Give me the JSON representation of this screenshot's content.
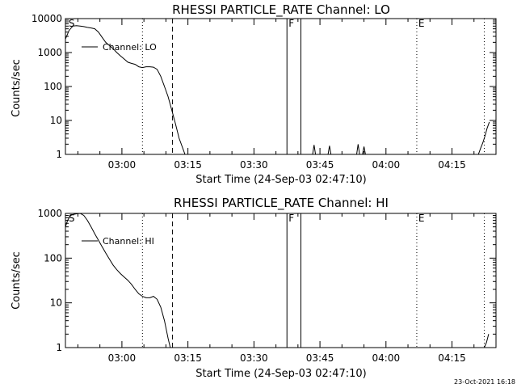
{
  "footer": {
    "timestamp": "23-Oct-2021 16:18"
  },
  "chart_data": [
    {
      "type": "line",
      "title": "RHESSI PARTICLE_RATE Channel: LO",
      "xlabel": "Start Time (24-Sep-03 02:47:10)",
      "ylabel": "Counts/sec",
      "yscale": "log",
      "ylim": [
        1,
        10000
      ],
      "ytick_labels": [
        "1",
        "10",
        "100",
        "1000",
        "10000"
      ],
      "ytick_values": [
        1,
        10,
        100,
        1000,
        10000
      ],
      "xlim": [
        "02:47:10",
        "04:25:00"
      ],
      "xtick_labels": [
        "03:00",
        "03:15",
        "03:30",
        "03:45",
        "04:00",
        "04:15"
      ],
      "legend": {
        "position": "upper-left",
        "entry": "Channel: LO"
      },
      "markers": [
        {
          "label": "S",
          "time": "02:47:30",
          "style": "none"
        },
        {
          "label": "",
          "time": "03:04:40",
          "style": "dotted"
        },
        {
          "label": "",
          "time": "03:11:30",
          "style": "dashed"
        },
        {
          "label": "F",
          "time": "03:37:30",
          "style": "solid"
        },
        {
          "label": "",
          "time": "03:40:40",
          "style": "solid"
        },
        {
          "label": "E",
          "time": "04:07:00",
          "style": "dotted"
        },
        {
          "label": "",
          "time": "04:22:20",
          "style": "dotted"
        }
      ],
      "series": [
        {
          "name": "Channel: LO",
          "x": [
            "02:47:10",
            "02:48:00",
            "02:48:50",
            "02:49:40",
            "02:50:30",
            "02:51:20",
            "02:52:10",
            "02:53:00",
            "02:53:50",
            "02:54:40",
            "02:55:30",
            "02:56:20",
            "02:57:10",
            "02:58:00",
            "02:58:50",
            "02:59:40",
            "03:00:30",
            "03:01:20",
            "03:02:10",
            "03:03:00",
            "03:03:50",
            "03:04:40",
            "03:05:30",
            "03:06:20",
            "03:07:10",
            "03:08:00",
            "03:08:50",
            "03:09:40",
            "03:10:30",
            "03:11:20",
            "03:12:10",
            "03:13:00",
            "03:13:50",
            "03:14:20"
          ],
          "y": [
            2500,
            4500,
            6000,
            6200,
            6000,
            5800,
            5500,
            5300,
            5000,
            4000,
            2800,
            2000,
            1600,
            1300,
            1000,
            800,
            650,
            520,
            480,
            450,
            380,
            360,
            380,
            380,
            370,
            320,
            200,
            100,
            50,
            20,
            8,
            3,
            1.5,
            1
          ]
        },
        {
          "name": "",
          "x": [
            "03:43:20",
            "03:43:40",
            "03:44:00",
            "03:46:50",
            "03:47:10",
            "03:47:30",
            "03:53:20",
            "03:53:40",
            "03:54:00",
            "03:54:40",
            "03:55:00",
            "03:55:20"
          ],
          "y": [
            1,
            1.9,
            1,
            1,
            1.8,
            1,
            1,
            2,
            1,
            1,
            1.7,
            1
          ]
        },
        {
          "name": "",
          "x": [
            "04:21:00",
            "04:21:30",
            "04:22:00",
            "04:22:30",
            "04:23:00",
            "04:23:30"
          ],
          "y": [
            1,
            1.5,
            2.2,
            3.5,
            6,
            9
          ]
        }
      ]
    },
    {
      "type": "line",
      "title": "RHESSI PARTICLE_RATE Channel: HI",
      "xlabel": "Start Time (24-Sep-03 02:47:10)",
      "ylabel": "Counts/sec",
      "yscale": "log",
      "ylim": [
        1,
        1000
      ],
      "ytick_labels": [
        "1",
        "10",
        "100",
        "1000"
      ],
      "ytick_values": [
        1,
        10,
        100,
        1000
      ],
      "xlim": [
        "02:47:10",
        "04:25:00"
      ],
      "xtick_labels": [
        "03:00",
        "03:15",
        "03:30",
        "03:45",
        "04:00",
        "04:15"
      ],
      "legend": {
        "position": "upper-left",
        "entry": "Channel: HI"
      },
      "markers": [
        {
          "label": "S",
          "time": "02:47:30",
          "style": "none"
        },
        {
          "label": "",
          "time": "03:04:40",
          "style": "dotted"
        },
        {
          "label": "",
          "time": "03:11:30",
          "style": "dashed"
        },
        {
          "label": "F",
          "time": "03:37:30",
          "style": "solid"
        },
        {
          "label": "",
          "time": "03:40:40",
          "style": "solid"
        },
        {
          "label": "E",
          "time": "04:07:00",
          "style": "dotted"
        },
        {
          "label": "",
          "time": "04:22:20",
          "style": "dotted"
        }
      ],
      "series": [
        {
          "name": "Channel: HI",
          "x": [
            "02:47:10",
            "02:47:40",
            "02:48:20",
            "02:49:00",
            "02:49:40",
            "02:50:30",
            "02:51:20",
            "02:52:10",
            "02:53:00",
            "02:53:50",
            "02:54:40",
            "02:55:30",
            "02:56:20",
            "02:57:10",
            "02:58:00",
            "02:58:50",
            "02:59:40",
            "03:00:30",
            "03:01:20",
            "03:02:10",
            "03:03:00",
            "03:03:50",
            "03:04:40",
            "03:05:30",
            "03:06:20",
            "03:07:10",
            "03:08:00",
            "03:08:50",
            "03:09:40",
            "03:10:30",
            "03:11:00"
          ],
          "y": [
            500,
            700,
            900,
            950,
            980,
            1000,
            900,
            700,
            500,
            350,
            250,
            180,
            130,
            95,
            70,
            55,
            45,
            38,
            32,
            26,
            20,
            16,
            14,
            13,
            13,
            14,
            12,
            8,
            4,
            1.6,
            1
          ]
        },
        {
          "name": "",
          "x": [
            "04:22:20",
            "04:22:50",
            "04:23:20"
          ],
          "y": [
            1,
            1.3,
            2
          ]
        }
      ]
    }
  ]
}
